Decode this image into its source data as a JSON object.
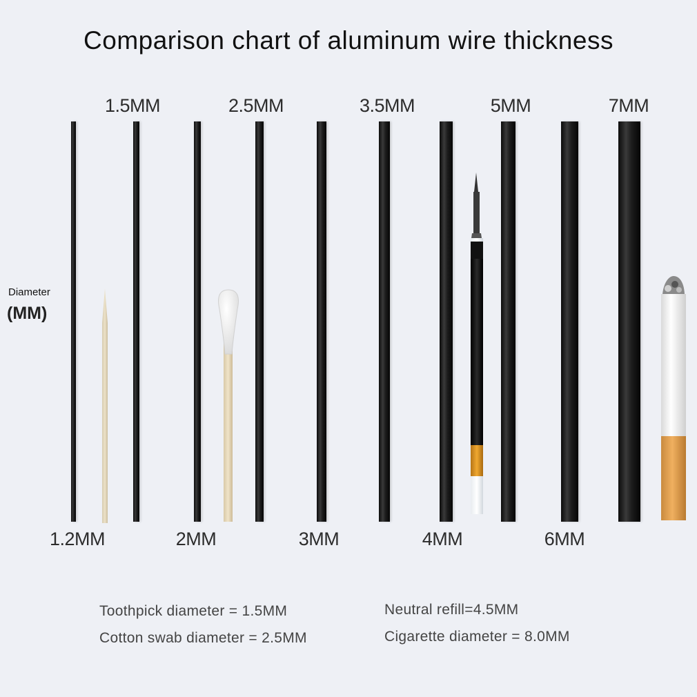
{
  "title": "Comparison chart of aluminum wire thickness",
  "axis": {
    "title": "Diameter",
    "unit": "(MM)"
  },
  "top_labels": [
    "1.5MM",
    "2.5MM",
    "3.5MM",
    "5MM",
    "7MM"
  ],
  "bottom_labels": [
    "1.2MM",
    "2MM",
    "3MM",
    "4MM",
    "6MM"
  ],
  "wires_mm": [
    1.2,
    1.5,
    2,
    2.5,
    3,
    3.5,
    4,
    5,
    6,
    7
  ],
  "objects": [
    "toothpick-icon",
    "cotton-swab-icon",
    "pen-refill-icon",
    "cigarette-icon"
  ],
  "notes": {
    "toothpick": "Toothpick diameter = 1.5MM",
    "cotton_swab": "Cotton swab diameter = 2.5MM",
    "neutral_refill": "Neutral refill=4.5MM",
    "cigarette": "Cigarette diameter = 8.0MM"
  },
  "colors": {
    "background": "#eef0f5",
    "wire": "#111111",
    "text": "#2c2c2c"
  }
}
